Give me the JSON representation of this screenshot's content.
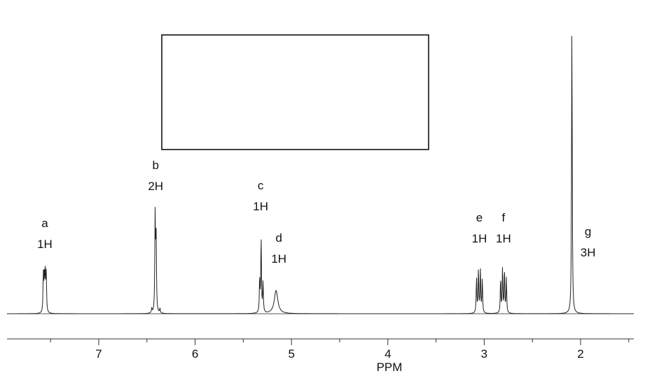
{
  "chart_data": {
    "type": "line",
    "xlabel": "PPM",
    "x_reversed": true,
    "xlim": [
      7.96,
      1.42
    ],
    "ticks_major": [
      "7",
      "6",
      "5",
      "4",
      "3",
      "2"
    ],
    "structure_box": {
      "content": ""
    },
    "peaks": [
      {
        "label": "a",
        "integral": "1H",
        "shift": 7.56,
        "height": 0.13,
        "multiplicity": "multiplet"
      },
      {
        "label": "b",
        "integral": "2H",
        "shift": 6.41,
        "height": 0.33,
        "multiplicity": "multiplet"
      },
      {
        "label": "c",
        "integral": "1H",
        "shift": 5.32,
        "height": 0.26,
        "multiplicity": "doublet"
      },
      {
        "label": "d",
        "integral": "1H",
        "shift": 5.16,
        "height": 0.08,
        "multiplicity": "broad singlet"
      },
      {
        "label": "e",
        "integral": "1H",
        "shift": 3.05,
        "height": 0.15,
        "multiplicity": "doublet of doublets"
      },
      {
        "label": "f",
        "integral": "1H",
        "shift": 2.8,
        "height": 0.15,
        "multiplicity": "doublet of doublets"
      },
      {
        "label": "g",
        "integral": "3H",
        "shift": 2.09,
        "height": 1.0,
        "multiplicity": "singlet"
      }
    ]
  }
}
